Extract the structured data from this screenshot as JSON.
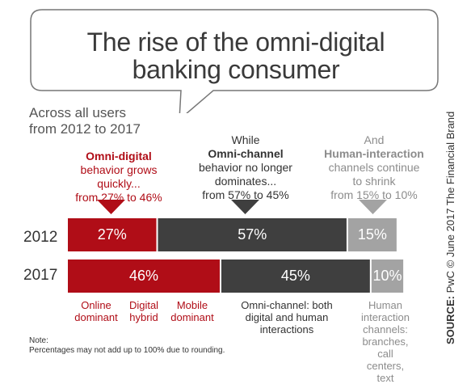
{
  "header": {
    "title_line1": "The rise of the omni-digital",
    "title_line2": "banking consumer",
    "subtitle_line1": "Across all users",
    "subtitle_line2": "from 2012 to 2017"
  },
  "annotations": {
    "digital": {
      "bold": "Omni-digital",
      "line1": "behavior grows",
      "line2": "quickly...",
      "line3": "from 27% to 46%"
    },
    "omni": {
      "line0": "While",
      "bold": "Omni-channel",
      "line1": "behavior no longer",
      "line2": "dominates...",
      "line3": "from 57% to 45%"
    },
    "human": {
      "line0": "And",
      "bold": "Human-interaction",
      "line1": "channels continue",
      "line2": "to shrink",
      "line3": "from 15% to 10%"
    }
  },
  "chart_data": {
    "type": "bar",
    "orientation": "horizontal-stacked",
    "categories": [
      "2012",
      "2017"
    ],
    "series": [
      {
        "name": "Omni-digital",
        "values": [
          27,
          46
        ],
        "labels": [
          "27%",
          "46%"
        ]
      },
      {
        "name": "Omni-channel",
        "values": [
          57,
          45
        ],
        "labels": [
          "57%",
          "45%"
        ]
      },
      {
        "name": "Human-interaction",
        "values": [
          15,
          10
        ],
        "labels": [
          "15%",
          "10%"
        ]
      }
    ],
    "colors": [
      "#b00d17",
      "#3f3f3f",
      "#a3a3a3"
    ]
  },
  "category_labels": {
    "online": [
      "Online",
      "dominant"
    ],
    "hybrid": [
      "Digital",
      "hybrid"
    ],
    "mobile": [
      "Mobile",
      "dominant"
    ],
    "omni": [
      "Omni-channel: both",
      "digital and human",
      "interactions"
    ],
    "human": [
      "Human",
      "interaction",
      "channels:",
      "branches, call",
      "centers, text"
    ]
  },
  "note": {
    "line1": "Note:",
    "line2": "Percentages may not add up to 100% due to rounding."
  },
  "source": {
    "bold": "SOURCE:",
    "text": " PwC © June 2017 The Financial Brand"
  }
}
